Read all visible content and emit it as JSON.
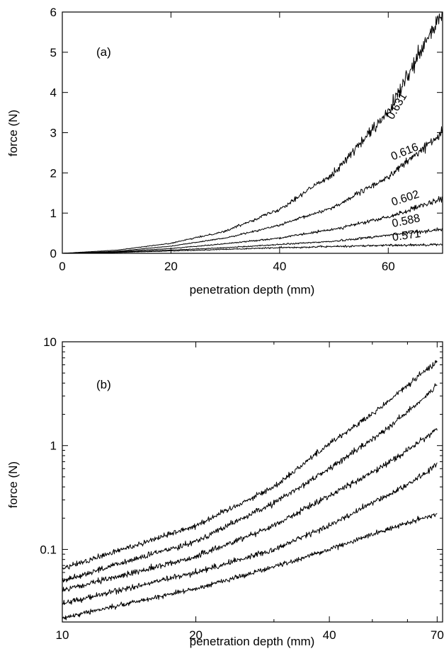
{
  "chart_data": [
    {
      "type": "line",
      "panel_label": "(a)",
      "xlabel": "penetration depth (mm)",
      "ylabel": "force (N)",
      "xlim": [
        0,
        70
      ],
      "ylim": [
        0,
        6
      ],
      "x_scale": "linear",
      "y_scale": "linear",
      "x_ticks": [
        0,
        20,
        40,
        60
      ],
      "y_ticks": [
        0,
        1,
        2,
        3,
        4,
        5,
        6
      ],
      "grid": false,
      "legend": "none",
      "color": "#000000",
      "series": [
        {
          "name": "0.571",
          "x": [
            0,
            10,
            20,
            30,
            40,
            50,
            60,
            70
          ],
          "y": [
            0,
            0.02,
            0.06,
            0.1,
            0.14,
            0.17,
            0.2,
            0.22
          ],
          "noise": 0.02
        },
        {
          "name": "0.588",
          "x": [
            0,
            10,
            20,
            30,
            40,
            50,
            60,
            70
          ],
          "y": [
            0,
            0.03,
            0.08,
            0.14,
            0.22,
            0.3,
            0.45,
            0.6
          ],
          "noise": 0.03
        },
        {
          "name": "0.602",
          "x": [
            0,
            10,
            20,
            30,
            40,
            50,
            60,
            70
          ],
          "y": [
            0,
            0.04,
            0.12,
            0.24,
            0.38,
            0.6,
            0.9,
            1.35
          ],
          "noise": 0.05
        },
        {
          "name": "0.616",
          "x": [
            0,
            10,
            20,
            30,
            40,
            50,
            60,
            70
          ],
          "y": [
            0,
            0.05,
            0.18,
            0.38,
            0.7,
            1.15,
            1.9,
            3.0
          ],
          "noise": 0.08
        },
        {
          "name": "0.631",
          "x": [
            0,
            10,
            20,
            30,
            40,
            50,
            60,
            70
          ],
          "y": [
            0,
            0.08,
            0.25,
            0.55,
            1.1,
            2.0,
            3.5,
            6.0
          ],
          "noise": 0.18
        }
      ]
    },
    {
      "type": "line",
      "panel_label": "(b)",
      "xlabel": "penetration depth (mm)",
      "ylabel": "force (N)",
      "xlim": [
        10,
        72
      ],
      "ylim": [
        0.02,
        10
      ],
      "x_scale": "log",
      "y_scale": "log",
      "x_ticks": [
        10,
        20,
        40,
        70
      ],
      "y_ticks": [
        0.1,
        1,
        10
      ],
      "grid": false,
      "legend": "none",
      "color": "#000000",
      "series": [
        {
          "x": [
            10,
            20,
            30,
            40,
            50,
            60,
            70
          ],
          "y": [
            0.065,
            0.17,
            0.4,
            1.05,
            2.0,
            3.8,
            6.5
          ],
          "noise": 0.03
        },
        {
          "x": [
            10,
            20,
            30,
            40,
            50,
            60,
            70
          ],
          "y": [
            0.05,
            0.12,
            0.28,
            0.6,
            1.15,
            2.1,
            3.8
          ],
          "noise": 0.03
        },
        {
          "x": [
            10,
            20,
            30,
            40,
            50,
            60,
            70
          ],
          "y": [
            0.04,
            0.085,
            0.17,
            0.33,
            0.55,
            0.9,
            1.45
          ],
          "noise": 0.03
        },
        {
          "x": [
            10,
            20,
            30,
            40,
            50,
            60,
            70
          ],
          "y": [
            0.03,
            0.06,
            0.1,
            0.17,
            0.28,
            0.42,
            0.65
          ],
          "noise": 0.03
        },
        {
          "x": [
            10,
            20,
            30,
            40,
            50,
            60,
            70
          ],
          "y": [
            0.022,
            0.042,
            0.068,
            0.1,
            0.14,
            0.18,
            0.22
          ],
          "noise": 0.025
        }
      ]
    }
  ]
}
